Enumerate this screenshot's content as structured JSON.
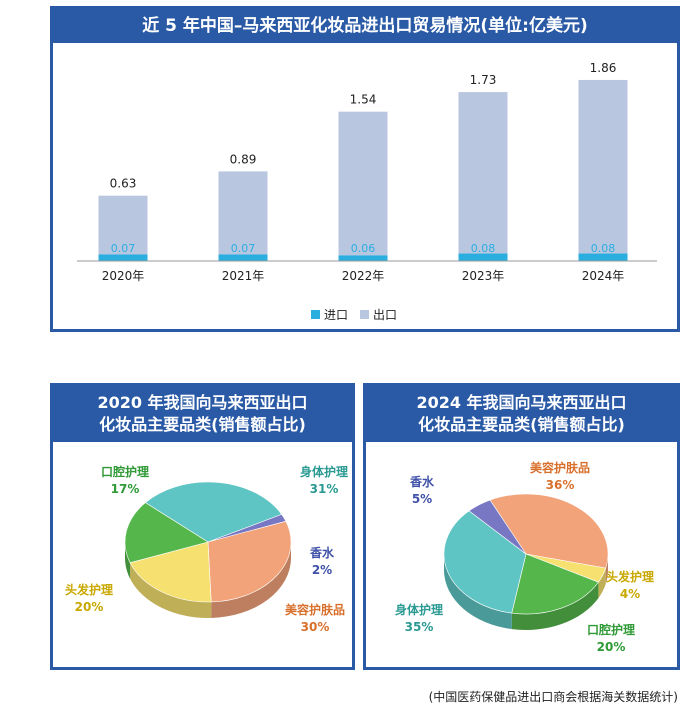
{
  "bar_chart": {
    "title": "近 5 年中国–马来西亚化妆品进出口贸易情况(单位:亿美元)",
    "legend": {
      "import": "进口",
      "export": "出口"
    },
    "colors": {
      "import": "#2aaee0",
      "export": "#b9c6e0"
    }
  },
  "pie_2020": {
    "title_line1": "2020 年我国向马来西亚出口",
    "title_line2": "化妆品主要品类(销售额占比)"
  },
  "pie_2024": {
    "title_line1": "2024 年我国向马来西亚出口",
    "title_line2": "化妆品主要品类(销售额占比)"
  },
  "source": "(中国医药保健品进出口商会根据海关数据统计)",
  "chart_data": [
    {
      "type": "bar",
      "title": "近 5 年中国–马来西亚化妆品进出口贸易情况(单位:亿美元)",
      "categories": [
        "2020年",
        "2021年",
        "2022年",
        "2023年",
        "2024年"
      ],
      "series": [
        {
          "name": "进口",
          "values": [
            0.07,
            0.07,
            0.06,
            0.08,
            0.08
          ]
        },
        {
          "name": "出口",
          "values": [
            0.63,
            0.89,
            1.54,
            1.73,
            1.86
          ]
        }
      ],
      "value_labels": {
        "import": [
          "0.07",
          "0.07",
          "0.06",
          "0.08",
          "0.08"
        ],
        "export": [
          "0.63",
          "0.89",
          "1.54",
          "1.73",
          "1.86"
        ]
      },
      "ylim": [
        0,
        2.1
      ],
      "grid": false,
      "legend_position": "bottom-center"
    },
    {
      "type": "pie",
      "title": "2020 年我国向马来西亚出口化妆品主要品类(销售额占比)",
      "slices": [
        {
          "label": "身体护理",
          "value": 31,
          "pct": "31%",
          "color": "#5fc5c4",
          "label_color": "#2a9a93"
        },
        {
          "label": "香水",
          "value": 2,
          "pct": "2%",
          "color": "#7777c4",
          "label_color": "#3f51a8"
        },
        {
          "label": "美容护肤品",
          "value": 30,
          "pct": "30%",
          "color": "#f2a37a",
          "label_color": "#d8702c"
        },
        {
          "label": "头发护理",
          "value": 20,
          "pct": "20%",
          "color": "#f5e070",
          "label_color": "#c9a800"
        },
        {
          "label": "口腔护理",
          "value": 17,
          "pct": "17%",
          "color": "#55b64c",
          "label_color": "#2f9a36"
        }
      ]
    },
    {
      "type": "pie",
      "title": "2024 年我国向马来西亚出口化妆品主要品类(销售额占比)",
      "slices": [
        {
          "label": "美容护肤品",
          "value": 36,
          "pct": "36%",
          "color": "#f2a37a",
          "label_color": "#d8702c"
        },
        {
          "label": "头发护理",
          "value": 4,
          "pct": "4%",
          "color": "#f5e070",
          "label_color": "#c9a800"
        },
        {
          "label": "口腔护理",
          "value": 20,
          "pct": "20%",
          "color": "#55b64c",
          "label_color": "#2f9a36"
        },
        {
          "label": "身体护理",
          "value": 35,
          "pct": "35%",
          "color": "#5fc5c4",
          "label_color": "#2a9a93"
        },
        {
          "label": "香水",
          "value": 5,
          "pct": "5%",
          "color": "#7777c4",
          "label_color": "#3f51a8"
        }
      ]
    }
  ]
}
